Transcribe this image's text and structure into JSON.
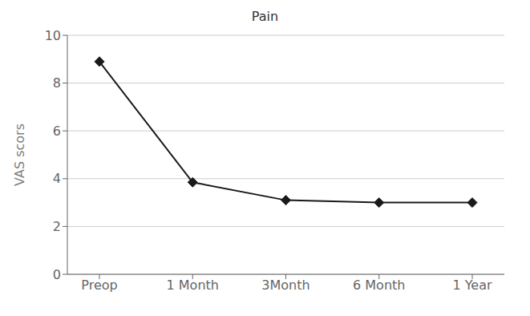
{
  "chart_data": {
    "type": "line",
    "title": "Pain",
    "ylabel": "VAS scors",
    "categories": [
      "Preop",
      "1 Month",
      "3Month",
      "6 Month",
      "1 Year"
    ],
    "values": [
      8.9,
      3.85,
      3.1,
      3.0,
      3.0
    ],
    "color": "#1a1a1a",
    "marker": "diamond",
    "ylim": [
      0,
      10
    ],
    "yticks": [
      0,
      2,
      4,
      6,
      8,
      10
    ],
    "grid": true
  }
}
